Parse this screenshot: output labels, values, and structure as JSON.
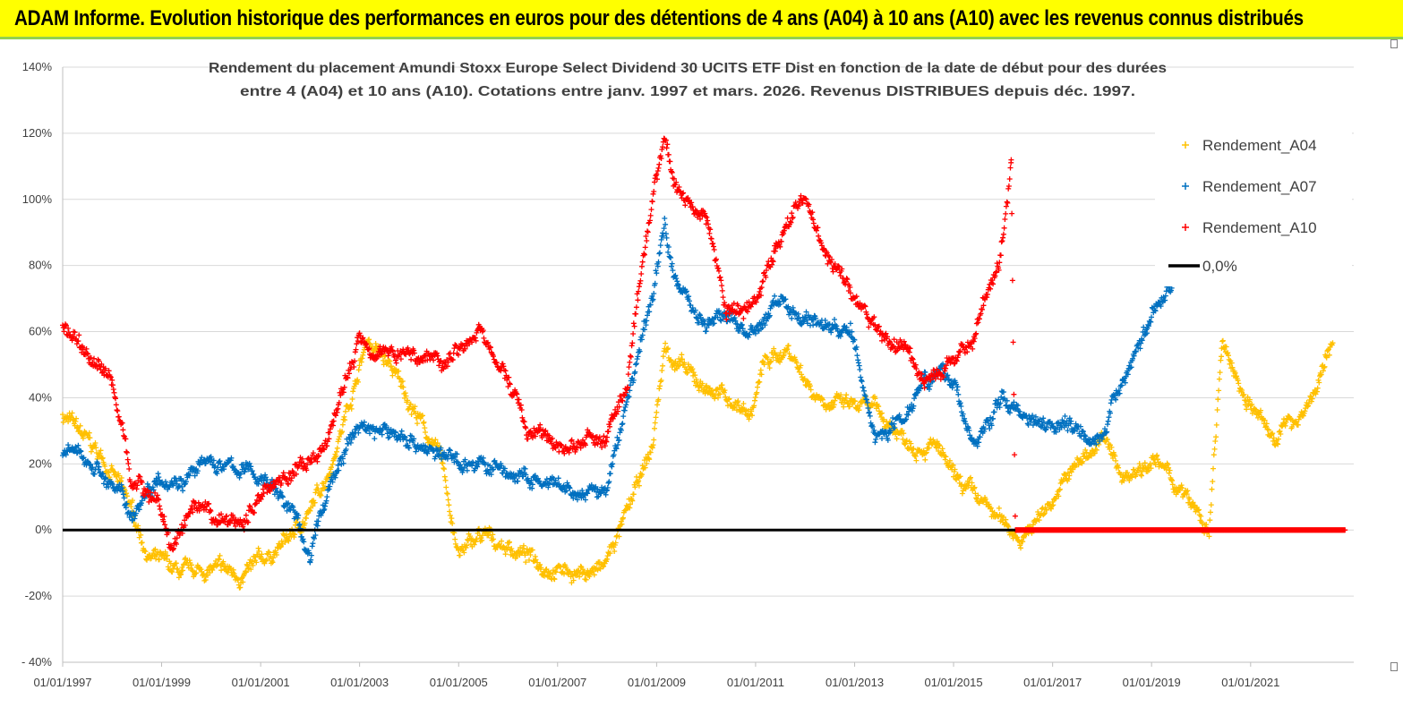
{
  "banner": {
    "title": "ADAM Informe. Evolution historique des performances en euros pour des détentions de 4 ans (A04) à 10 ans (A10) avec les revenus connus distribués",
    "background": "#ffff00",
    "border_color": "#92d050"
  },
  "chart_data": {
    "type": "scatter",
    "title_lines": [
      "Rendement du placement Amundi Stoxx Europe Select Dividend 30 UCITS ETF Dist en fonction de la date de début pour des durées",
      "entre 4 (A04) et 10 ans (A10).  Cotations entre janv. 1997 et mars. 2026. Revenus DISTRIBUES depuis déc. 1997."
    ],
    "x_axis": {
      "range": [
        "1997-01-01",
        "2023-02-01"
      ],
      "tick_labels": [
        "01/01/1997",
        "01/01/1999",
        "01/01/2001",
        "01/01/2003",
        "01/01/2005",
        "01/01/2007",
        "01/01/2009",
        "01/01/2011",
        "01/01/2013",
        "01/01/2015",
        "01/01/2017",
        "01/01/2019",
        "01/01/2021"
      ]
    },
    "y_axis": {
      "range": [
        -40,
        140
      ],
      "unit": "%",
      "tick_labels": [
        "- 40%",
        "-20%",
        "0%",
        "20%",
        "40%",
        "60%",
        "80%",
        "100%",
        "120%",
        "140%"
      ],
      "tick_values": [
        -40,
        -20,
        0,
        20,
        40,
        60,
        80,
        100,
        120,
        140
      ]
    },
    "gridlines": "horizontal",
    "legend_position": "right",
    "series": [
      {
        "name": "Rendement_A04",
        "color": "#ffc000",
        "marker": "plus",
        "keypoints": [
          [
            "1997-01-01",
            35
          ],
          [
            "1997-06-01",
            28
          ],
          [
            "1998-01-01",
            18
          ],
          [
            "1998-06-01",
            5
          ],
          [
            "1998-10-01",
            -8
          ],
          [
            "1999-06-01",
            -14
          ],
          [
            "2000-01-01",
            -12
          ],
          [
            "2000-09-01",
            -14
          ],
          [
            "2001-06-01",
            -5
          ],
          [
            "2002-01-01",
            5
          ],
          [
            "2002-06-01",
            20
          ],
          [
            "2002-12-01",
            45
          ],
          [
            "2003-03-01",
            58
          ],
          [
            "2003-09-01",
            48
          ],
          [
            "2004-03-01",
            35
          ],
          [
            "2004-09-01",
            20
          ],
          [
            "2005-01-01",
            -8
          ],
          [
            "2005-06-01",
            -2
          ],
          [
            "2006-01-01",
            -5
          ],
          [
            "2006-09-01",
            -10
          ],
          [
            "2007-06-01",
            -13
          ],
          [
            "2007-12-01",
            -12
          ],
          [
            "2008-06-01",
            5
          ],
          [
            "2008-12-01",
            25
          ],
          [
            "2009-03-01",
            55
          ],
          [
            "2009-10-01",
            45
          ],
          [
            "2010-06-01",
            40
          ],
          [
            "2010-12-01",
            35
          ],
          [
            "2011-03-01",
            50
          ],
          [
            "2011-09-01",
            55
          ],
          [
            "2012-03-01",
            42
          ],
          [
            "2012-09-01",
            38
          ],
          [
            "2013-06-01",
            36
          ],
          [
            "2014-01-01",
            28
          ],
          [
            "2014-09-01",
            25
          ],
          [
            "2015-01-01",
            15
          ],
          [
            "2015-06-01",
            10
          ],
          [
            "2016-01-01",
            2
          ],
          [
            "2016-06-01",
            -2
          ],
          [
            "2016-12-01",
            8
          ],
          [
            "2017-06-01",
            18
          ],
          [
            "2018-01-01",
            28
          ],
          [
            "2018-06-01",
            16
          ],
          [
            "2019-01-01",
            22
          ],
          [
            "2019-06-01",
            15
          ],
          [
            "2019-12-01",
            5
          ],
          [
            "2020-03-01",
            -2
          ],
          [
            "2020-06-01",
            55
          ],
          [
            "2020-12-01",
            40
          ],
          [
            "2021-06-01",
            28
          ],
          [
            "2022-01-01",
            35
          ],
          [
            "2022-06-01",
            45
          ],
          [
            "2022-09-01",
            58
          ]
        ]
      },
      {
        "name": "Rendement_A07",
        "color": "#0070c0",
        "marker": "plus",
        "keypoints": [
          [
            "1997-01-01",
            24
          ],
          [
            "1997-09-01",
            20
          ],
          [
            "1998-06-01",
            5
          ],
          [
            "1998-12-01",
            17
          ],
          [
            "1999-06-01",
            16
          ],
          [
            "2000-01-01",
            20
          ],
          [
            "2000-09-01",
            18
          ],
          [
            "2001-03-01",
            15
          ],
          [
            "2001-09-01",
            5
          ],
          [
            "2002-01-01",
            -8
          ],
          [
            "2002-06-01",
            15
          ],
          [
            "2003-01-01",
            32
          ],
          [
            "2003-06-01",
            30
          ],
          [
            "2004-01-01",
            28
          ],
          [
            "2004-09-01",
            22
          ],
          [
            "2005-06-01",
            20
          ],
          [
            "2006-06-01",
            15
          ],
          [
            "2007-06-01",
            10
          ],
          [
            "2008-01-01",
            12
          ],
          [
            "2008-06-01",
            40
          ],
          [
            "2008-12-01",
            70
          ],
          [
            "2009-03-01",
            92
          ],
          [
            "2009-06-01",
            75
          ],
          [
            "2010-01-01",
            62
          ],
          [
            "2010-06-01",
            65
          ],
          [
            "2011-01-01",
            58
          ],
          [
            "2011-06-01",
            70
          ],
          [
            "2011-12-01",
            65
          ],
          [
            "2012-06-01",
            62
          ],
          [
            "2012-12-01",
            60
          ],
          [
            "2013-06-01",
            28
          ],
          [
            "2014-01-01",
            35
          ],
          [
            "2014-06-01",
            48
          ],
          [
            "2015-01-01",
            45
          ],
          [
            "2015-06-01",
            25
          ],
          [
            "2016-01-01",
            40
          ],
          [
            "2016-06-01",
            35
          ],
          [
            "2017-06-01",
            32
          ],
          [
            "2018-01-01",
            28
          ],
          [
            "2018-06-01",
            45
          ],
          [
            "2018-12-01",
            62
          ],
          [
            "2019-06-01",
            75
          ]
        ]
      },
      {
        "name": "Rendement_A10",
        "color": "#ff0000",
        "marker": "plus",
        "keypoints": [
          [
            "1997-01-01",
            62
          ],
          [
            "1997-06-01",
            55
          ],
          [
            "1998-01-01",
            45
          ],
          [
            "1998-06-01",
            15
          ],
          [
            "1998-12-01",
            10
          ],
          [
            "1999-03-01",
            -5
          ],
          [
            "1999-09-01",
            5
          ],
          [
            "2000-03-01",
            2
          ],
          [
            "2000-09-01",
            3
          ],
          [
            "2001-03-01",
            14
          ],
          [
            "2001-09-01",
            18
          ],
          [
            "2002-03-01",
            20
          ],
          [
            "2002-09-01",
            42
          ],
          [
            "2003-01-01",
            58
          ],
          [
            "2003-06-01",
            55
          ],
          [
            "2004-01-01",
            53
          ],
          [
            "2004-09-01",
            52
          ],
          [
            "2005-06-01",
            60
          ],
          [
            "2006-01-01",
            45
          ],
          [
            "2006-06-01",
            30
          ],
          [
            "2007-01-01",
            25
          ],
          [
            "2007-06-01",
            26
          ],
          [
            "2008-01-01",
            28
          ],
          [
            "2008-06-01",
            45
          ],
          [
            "2008-12-01",
            100
          ],
          [
            "2009-03-01",
            120
          ],
          [
            "2009-06-01",
            103
          ],
          [
            "2010-01-01",
            95
          ],
          [
            "2010-06-01",
            65
          ],
          [
            "2011-01-01",
            70
          ],
          [
            "2011-06-01",
            85
          ],
          [
            "2011-12-01",
            102
          ],
          [
            "2012-06-01",
            85
          ],
          [
            "2012-12-01",
            72
          ],
          [
            "2013-06-01",
            60
          ],
          [
            "2014-01-01",
            55
          ],
          [
            "2014-06-01",
            45
          ],
          [
            "2015-01-01",
            50
          ],
          [
            "2015-06-01",
            60
          ],
          [
            "2015-12-01",
            80
          ],
          [
            "2016-03-01",
            110
          ],
          [
            "2016-04-01",
            0
          ],
          [
            "2022-12-01",
            0
          ]
        ]
      }
    ],
    "reference_line": {
      "name": "0,0%",
      "value": 0,
      "color": "#000000"
    }
  }
}
